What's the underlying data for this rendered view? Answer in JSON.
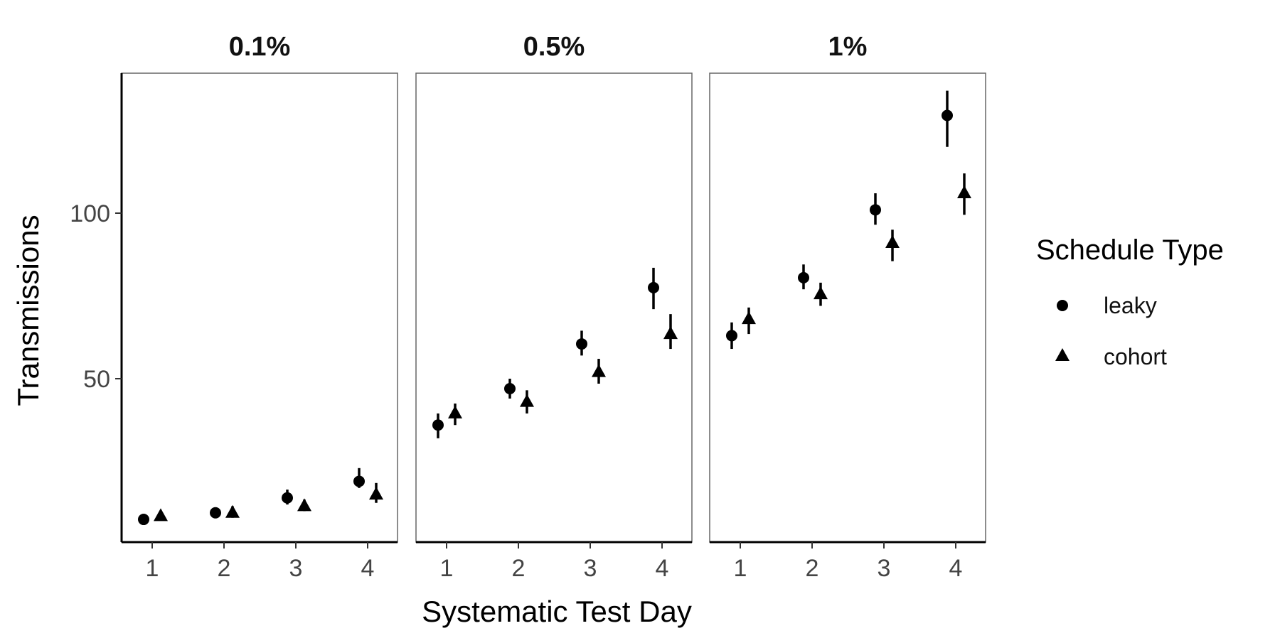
{
  "chart_data": {
    "type": "scatter",
    "facet_titles": [
      "0.1%",
      "0.5%",
      "1%"
    ],
    "x": [
      1,
      2,
      3,
      4
    ],
    "xlabel": "Systematic Test Day",
    "ylabel": "Transmissions",
    "y_ticks": [
      50,
      100
    ],
    "x_ticks": [
      1,
      2,
      3,
      4
    ],
    "ylim": [
      0,
      142
    ],
    "grid": false,
    "legend": {
      "title": "Schedule Type",
      "placement": "right",
      "entries": [
        {
          "label": "leaky",
          "shape": "circle"
        },
        {
          "label": "cohort",
          "shape": "triangle"
        }
      ]
    },
    "facets": [
      {
        "title": "0.1%",
        "series": [
          {
            "name": "leaky",
            "shape": "circle",
            "values": [
              7.5,
              9.5,
              14,
              19
            ],
            "lower": [
              6.5,
              8,
              12,
              17
            ],
            "upper": [
              9,
              11,
              16.5,
              23
            ]
          },
          {
            "name": "cohort",
            "shape": "triangle",
            "values": [
              8.5,
              9.5,
              11.5,
              15
            ],
            "lower": [
              7.5,
              8,
              10,
              12.5
            ],
            "upper": [
              10,
              11.5,
              13.5,
              18.5
            ]
          }
        ]
      },
      {
        "title": "0.5%",
        "series": [
          {
            "name": "leaky",
            "shape": "circle",
            "values": [
              36,
              47,
              60.5,
              77.5
            ],
            "lower": [
              32,
              44,
              57,
              71
            ],
            "upper": [
              39.5,
              50,
              64.5,
              83.5
            ]
          },
          {
            "name": "cohort",
            "shape": "triangle",
            "values": [
              39.5,
              43,
              52,
              63.5
            ],
            "lower": [
              36,
              39.5,
              48.5,
              59
            ],
            "upper": [
              42.5,
              46.5,
              56,
              69.5
            ]
          }
        ]
      },
      {
        "title": "1%",
        "series": [
          {
            "name": "leaky",
            "shape": "circle",
            "values": [
              63,
              80.5,
              101,
              129.5
            ],
            "lower": [
              59,
              77,
              96.5,
              120
            ],
            "upper": [
              67,
              84.5,
              106,
              137
            ]
          },
          {
            "name": "cohort",
            "shape": "triangle",
            "values": [
              68,
              75.5,
              91,
              106
            ],
            "lower": [
              63.5,
              72,
              85.5,
              99.5
            ],
            "upper": [
              71.5,
              79,
              95,
              112
            ]
          }
        ]
      }
    ]
  }
}
